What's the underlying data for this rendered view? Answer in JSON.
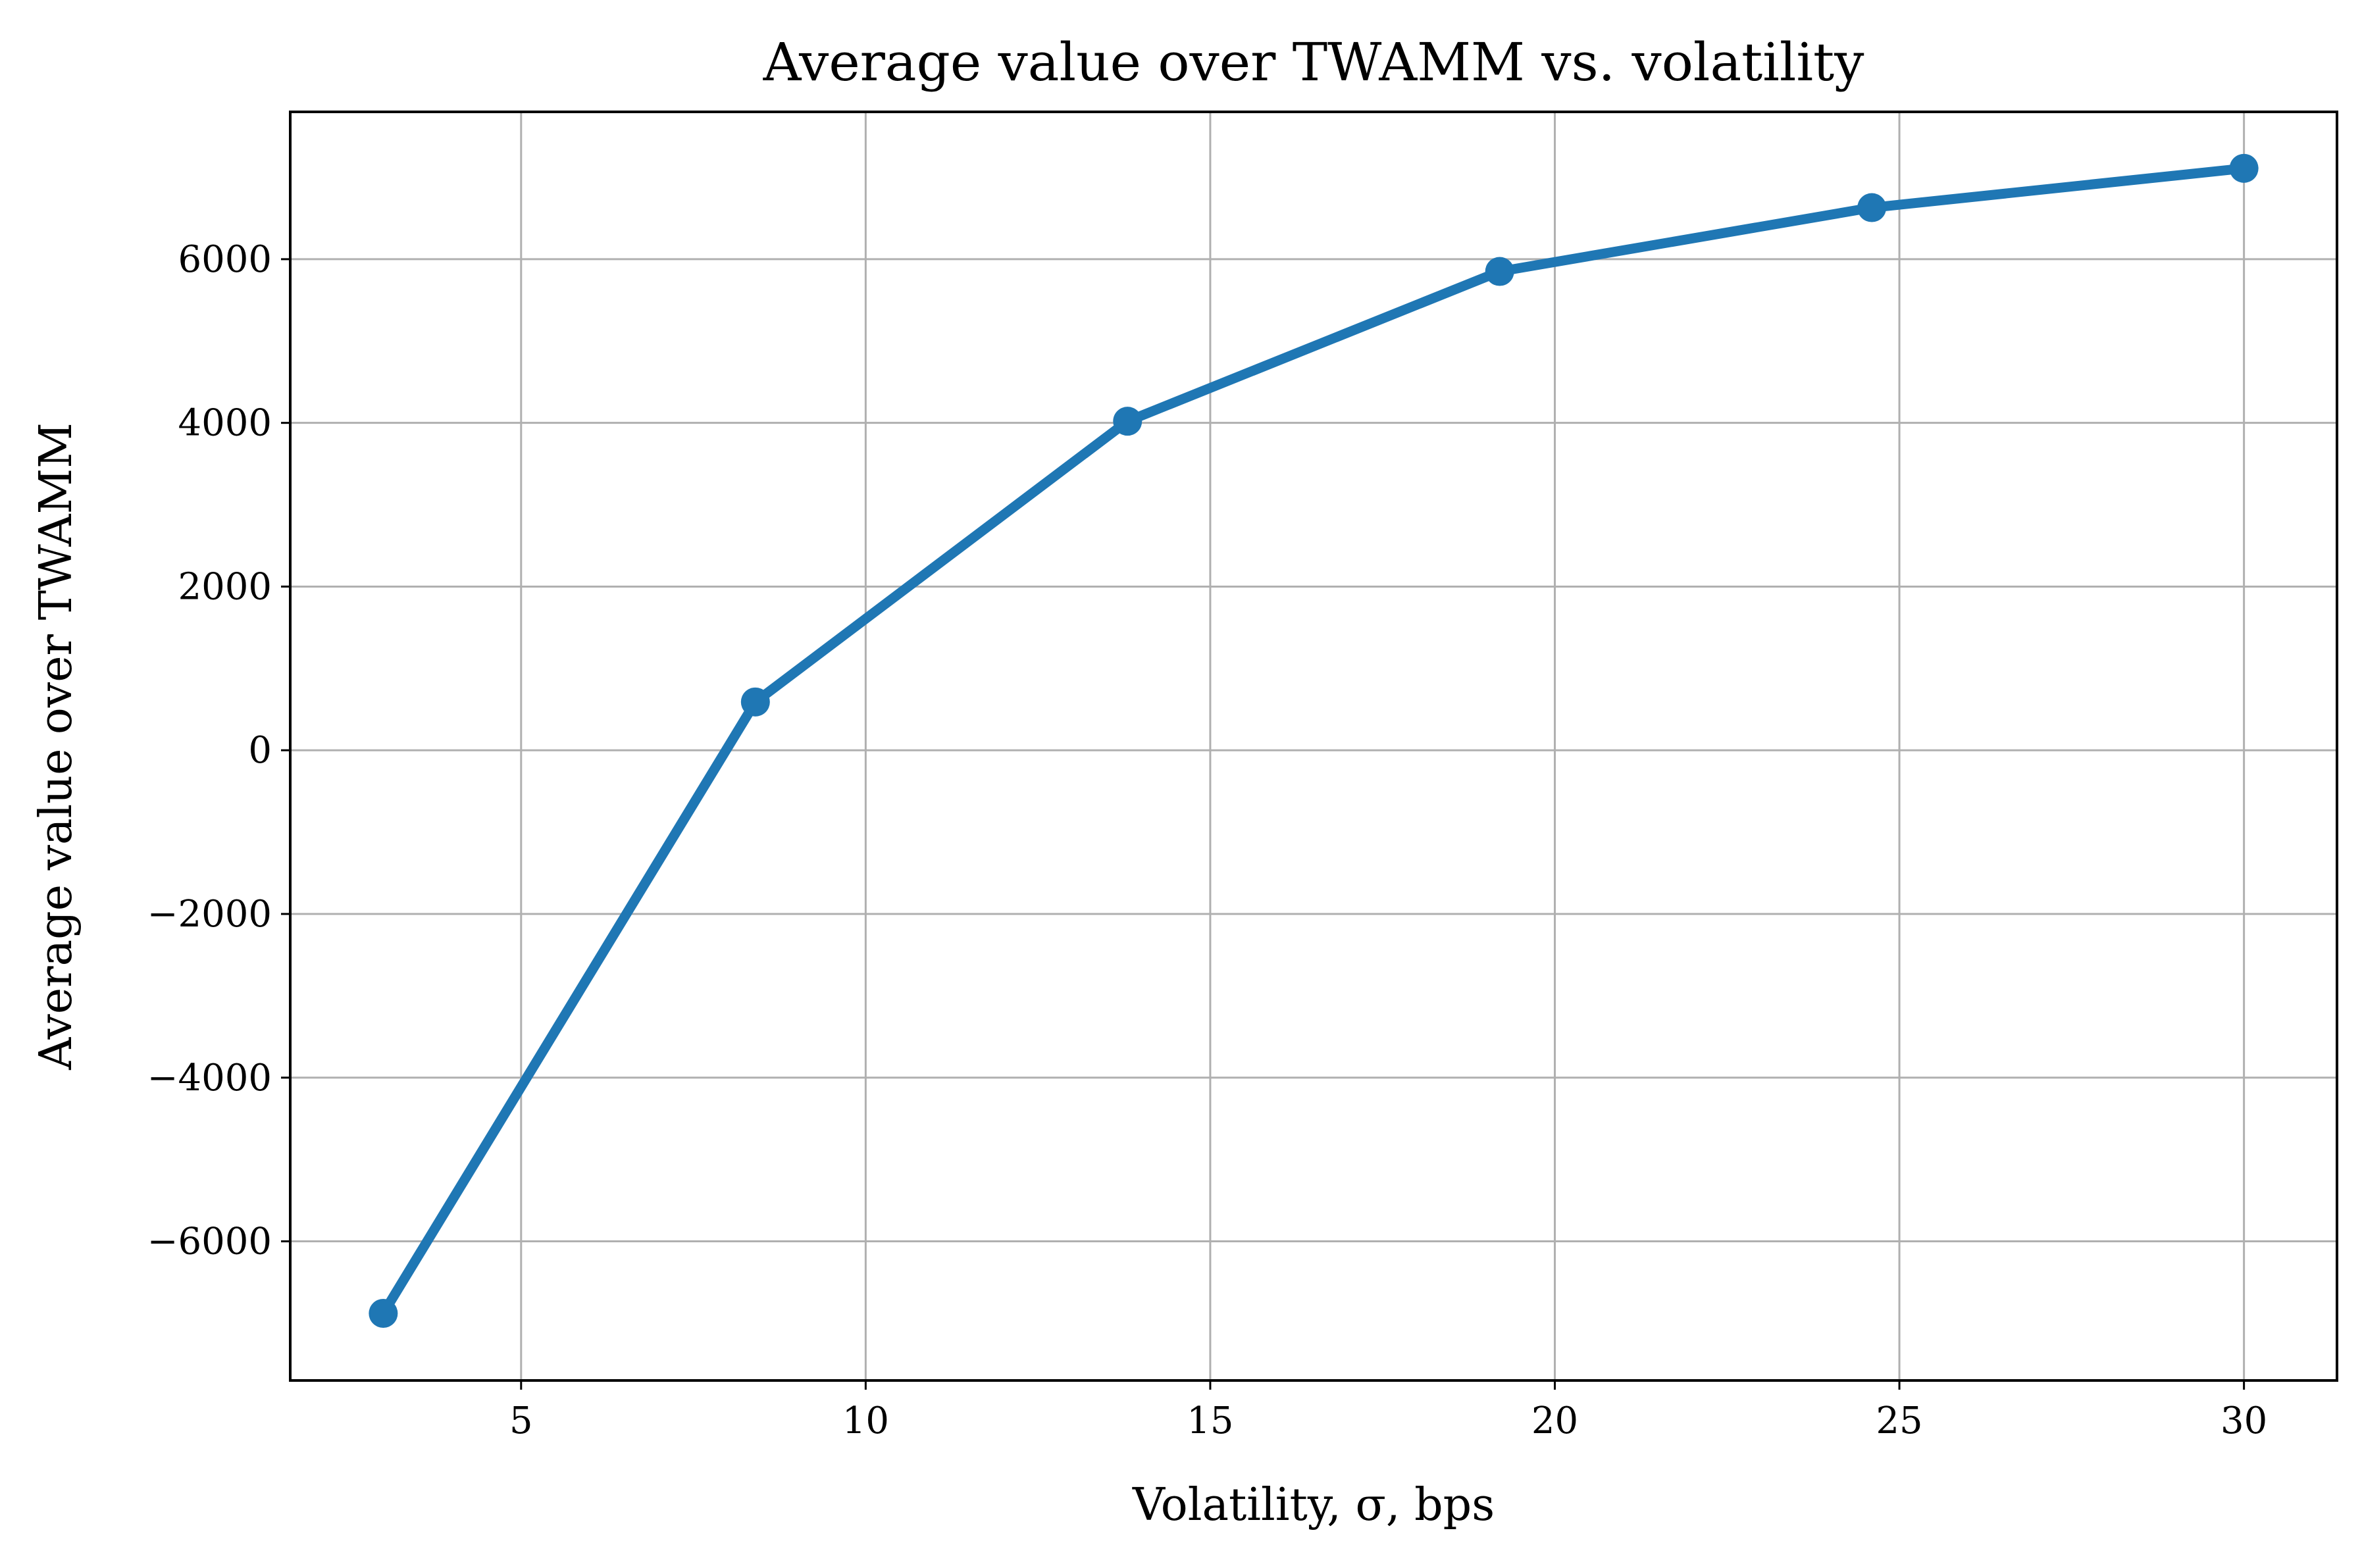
{
  "chart_data": {
    "type": "line",
    "title": "Average value over TWAMM vs. volatility",
    "xlabel": "Volatility, σ, bps",
    "ylabel": "Average value over TWAMM",
    "xlim": [
      1.65,
      31.35
    ],
    "ylim": [
      -7700,
      7800
    ],
    "xticks": [
      5,
      10,
      15,
      20,
      25,
      30
    ],
    "yticks": [
      -6000,
      -4000,
      -2000,
      0,
      2000,
      4000,
      6000
    ],
    "xtick_labels": [
      "5",
      "10",
      "15",
      "20",
      "25",
      "30"
    ],
    "ytick_labels": [
      "−6000",
      "−4000",
      "−2000",
      "0",
      "2000",
      "4000",
      "6000"
    ],
    "grid": true,
    "legend": "none",
    "series": [
      {
        "color": "#1f77b4",
        "marker": "circle",
        "x": [
          3,
          8.4,
          13.8,
          19.2,
          24.6,
          30
        ],
        "y": [
          -6880,
          590,
          4020,
          5850,
          6630,
          7110
        ]
      }
    ]
  }
}
